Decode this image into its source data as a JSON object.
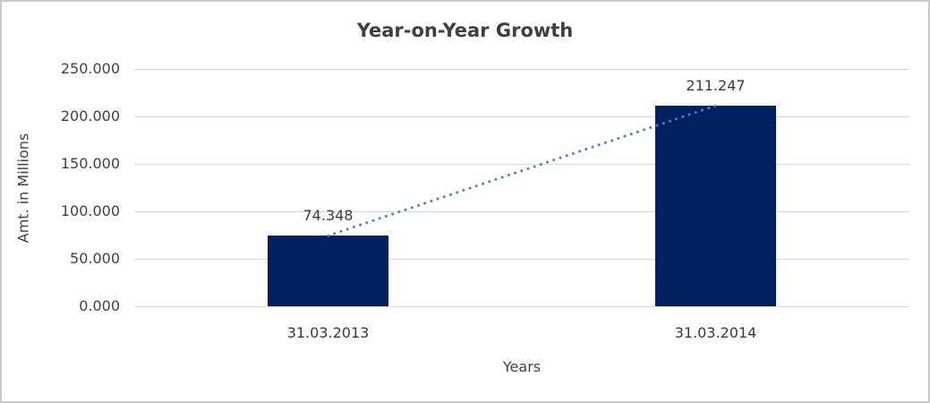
{
  "chart_data": {
    "type": "bar",
    "title": "Year-on-Year Growth",
    "xlabel": "Years",
    "ylabel": "Amt. in Millions",
    "categories": [
      "31.03.2013",
      "31.03.2014"
    ],
    "values": [
      74.348,
      211.247
    ],
    "data_labels": [
      "74.348",
      "211.247"
    ],
    "yticks": [
      {
        "value": 0,
        "label": "0.000"
      },
      {
        "value": 50,
        "label": "50.000"
      },
      {
        "value": 100,
        "label": "100.000"
      },
      {
        "value": 150,
        "label": "150.000"
      },
      {
        "value": 200,
        "label": "200.000"
      },
      {
        "value": 250,
        "label": "250.000"
      }
    ],
    "ylim": [
      0,
      250
    ],
    "grid": "horizontal",
    "legend": "none",
    "trendline": {
      "type": "linear",
      "style": "dotted"
    },
    "colors": {
      "bar": "#002060",
      "trendline": "#4f81bd",
      "gridline": "#d9d9d9",
      "title_text": "#3f3f3f",
      "axis_text": "#404040",
      "border": "#c9c9c9",
      "background": "#ffffff"
    }
  }
}
